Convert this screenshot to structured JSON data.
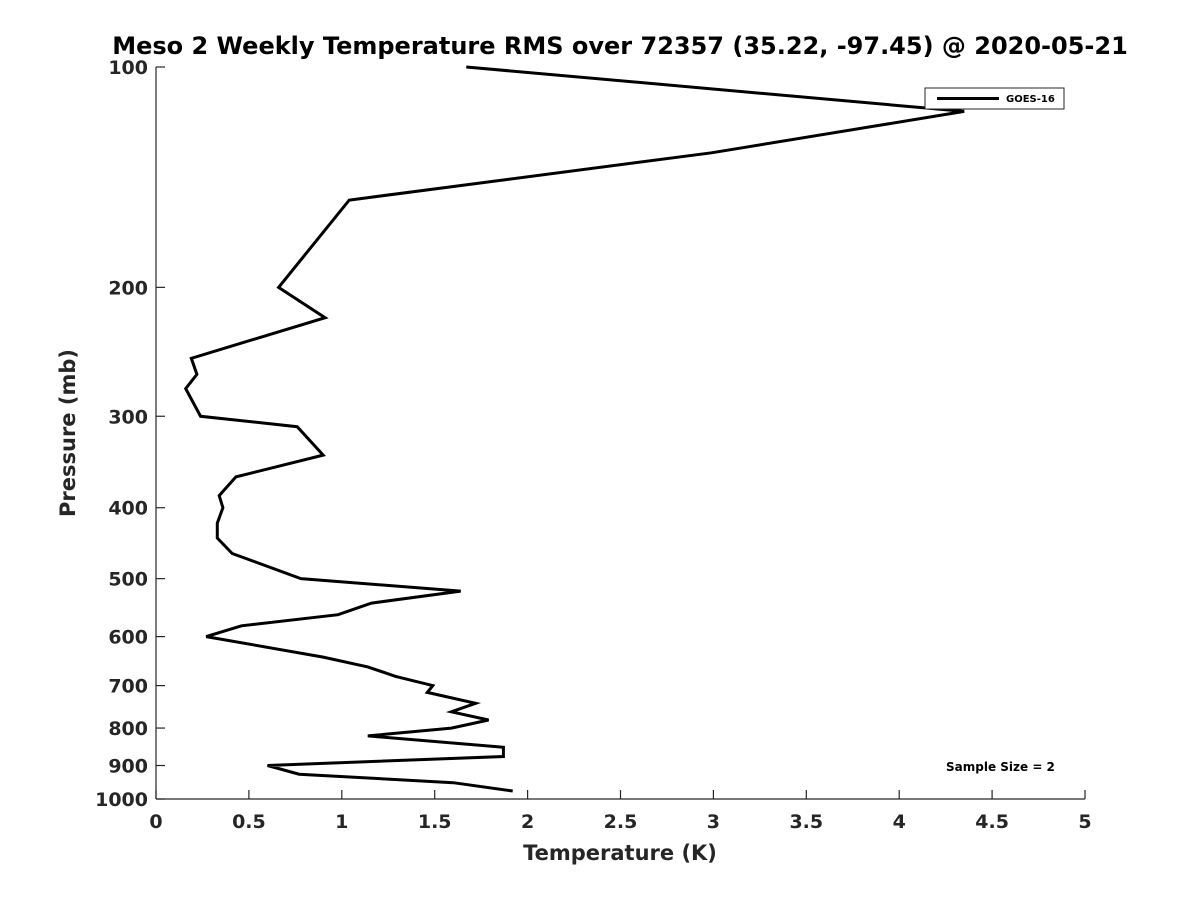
{
  "chart_data": {
    "type": "line",
    "title": "Meso 2 Weekly Temperature RMS over 72357 (35.22, -97.45) @ 2020-05-21",
    "xlabel": "Temperature (K)",
    "ylabel": "Pressure (mb)",
    "xlim": [
      0,
      5
    ],
    "ylim": [
      1000,
      100
    ],
    "y_scale": "log",
    "grid": false,
    "legend_position": "top-right",
    "x_ticks": [
      0,
      0.5,
      1,
      1.5,
      2,
      2.5,
      3,
      3.5,
      4,
      4.5,
      5
    ],
    "x_tick_labels": [
      "0",
      "0.5",
      "1",
      "1.5",
      "2",
      "2.5",
      "3",
      "3.5",
      "4",
      "4.5",
      "5"
    ],
    "y_ticks": [
      100,
      200,
      300,
      400,
      500,
      600,
      700,
      800,
      900,
      1000
    ],
    "y_tick_labels": [
      "100",
      "200",
      "300",
      "400",
      "500",
      "600",
      "700",
      "800",
      "900",
      "1000"
    ],
    "series": [
      {
        "name": "GOES-16",
        "color": "#000000",
        "x": [
          1.67,
          4.35,
          2.99,
          1.04,
          0.66,
          0.91,
          0.19,
          0.22,
          0.16,
          0.24,
          0.76,
          0.9,
          0.43,
          0.34,
          0.36,
          0.33,
          0.33,
          0.41,
          0.78,
          1.64,
          1.16,
          0.98,
          0.46,
          0.27,
          0.9,
          1.14,
          1.29,
          1.49,
          1.46,
          1.72,
          1.59,
          1.79,
          1.59,
          1.14,
          1.87,
          1.87,
          0.6,
          0.77,
          1.6,
          1.92
        ],
        "y": [
          100,
          115,
          131,
          152,
          200,
          220,
          250,
          263,
          275,
          300,
          310,
          339,
          363,
          385,
          400,
          420,
          440,
          462,
          500,
          520,
          540,
          560,
          580,
          600,
          640,
          660,
          680,
          700,
          715,
          740,
          760,
          780,
          800,
          820,
          850,
          875,
          900,
          925,
          950,
          975
        ]
      }
    ],
    "annotations": [
      {
        "text": "Sample Size = 2"
      }
    ]
  }
}
